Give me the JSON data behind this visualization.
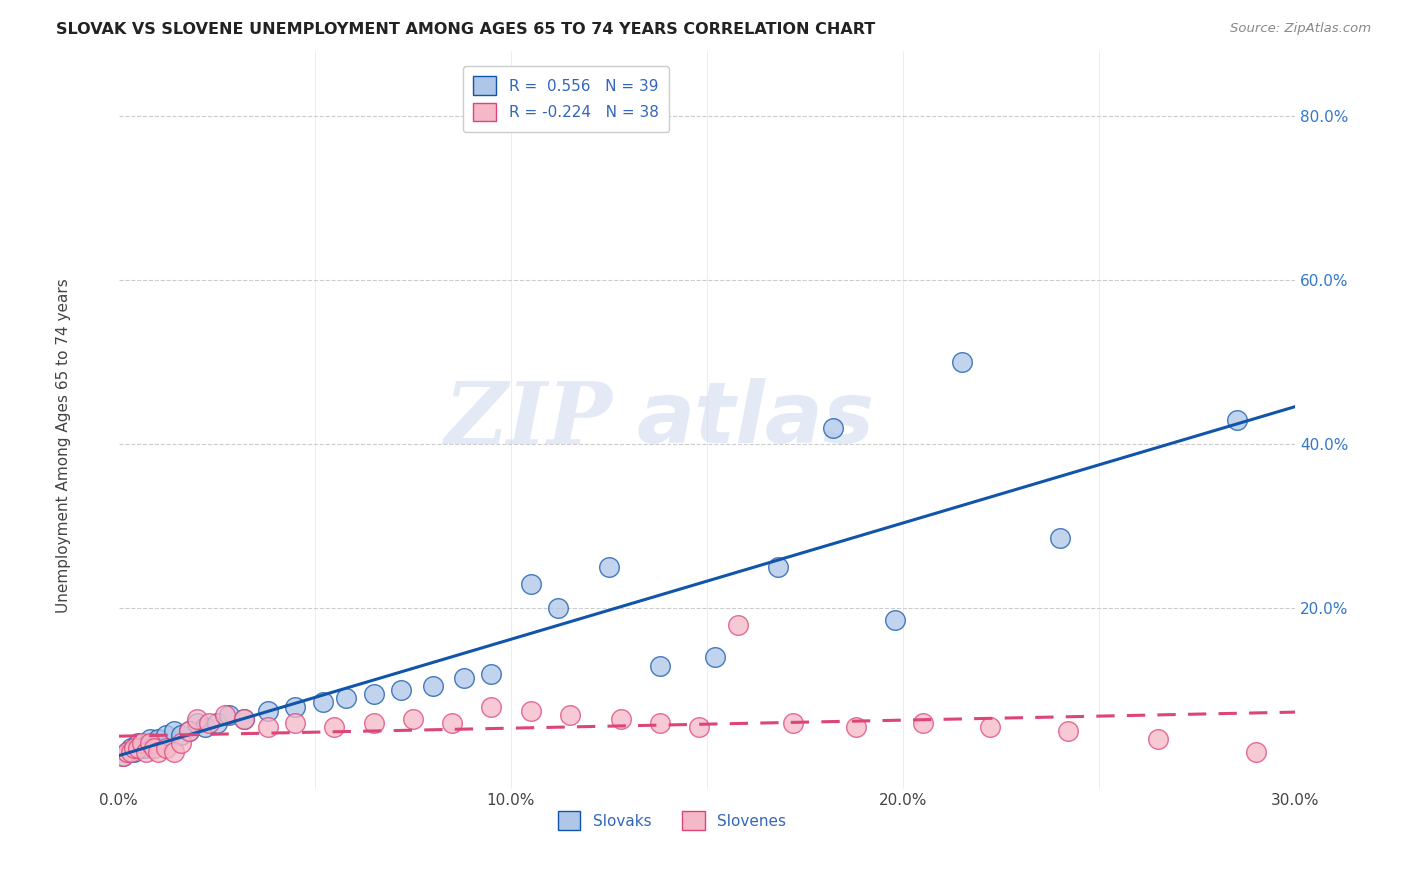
{
  "title": "SLOVAK VS SLOVENE UNEMPLOYMENT AMONG AGES 65 TO 74 YEARS CORRELATION CHART",
  "source": "Source: ZipAtlas.com",
  "ylabel": "Unemployment Among Ages 65 to 74 years",
  "xlim": [
    0.0,
    0.3
  ],
  "ylim": [
    -0.02,
    0.88
  ],
  "ytick_vals": [
    0.0,
    0.2,
    0.4,
    0.6,
    0.8
  ],
  "ytick_labels": [
    "",
    "20.0%",
    "40.0%",
    "60.0%",
    "80.0%"
  ],
  "xtick_vals": [
    0.0,
    0.05,
    0.1,
    0.15,
    0.2,
    0.25,
    0.3
  ],
  "xtick_labels": [
    "0.0%",
    "",
    "10.0%",
    "",
    "20.0%",
    "",
    "30.0%"
  ],
  "r_slovak": 0.556,
  "n_slovak": 39,
  "r_slovene": -0.224,
  "n_slovene": 38,
  "slovak_color": "#aec6e8",
  "slovene_color": "#f4b8c8",
  "trend_slovak_color": "#1155aa",
  "trend_slovene_color": "#dd4477",
  "watermark_zip": "ZIP",
  "watermark_atlas": "atlas",
  "slovak_x": [
    0.001,
    0.002,
    0.003,
    0.004,
    0.005,
    0.006,
    0.007,
    0.008,
    0.009,
    0.01,
    0.012,
    0.014,
    0.016,
    0.018,
    0.02,
    0.022,
    0.025,
    0.028,
    0.032,
    0.038,
    0.045,
    0.052,
    0.058,
    0.065,
    0.072,
    0.08,
    0.088,
    0.095,
    0.105,
    0.112,
    0.125,
    0.138,
    0.152,
    0.168,
    0.182,
    0.198,
    0.215,
    0.24,
    0.285
  ],
  "slovak_y": [
    0.02,
    0.025,
    0.03,
    0.025,
    0.035,
    0.03,
    0.03,
    0.04,
    0.035,
    0.04,
    0.045,
    0.05,
    0.045,
    0.05,
    0.06,
    0.055,
    0.06,
    0.07,
    0.065,
    0.075,
    0.08,
    0.085,
    0.09,
    0.095,
    0.1,
    0.105,
    0.115,
    0.12,
    0.23,
    0.2,
    0.25,
    0.13,
    0.14,
    0.25,
    0.42,
    0.185,
    0.5,
    0.285,
    0.43
  ],
  "slovene_x": [
    0.001,
    0.002,
    0.003,
    0.004,
    0.005,
    0.006,
    0.007,
    0.008,
    0.009,
    0.01,
    0.012,
    0.014,
    0.016,
    0.018,
    0.02,
    0.023,
    0.027,
    0.032,
    0.038,
    0.045,
    0.055,
    0.065,
    0.075,
    0.085,
    0.095,
    0.105,
    0.115,
    0.128,
    0.138,
    0.148,
    0.158,
    0.172,
    0.188,
    0.205,
    0.222,
    0.242,
    0.265,
    0.29
  ],
  "slovene_y": [
    0.02,
    0.025,
    0.025,
    0.03,
    0.03,
    0.035,
    0.025,
    0.035,
    0.03,
    0.025,
    0.03,
    0.025,
    0.035,
    0.05,
    0.065,
    0.06,
    0.07,
    0.065,
    0.055,
    0.06,
    0.055,
    0.06,
    0.065,
    0.06,
    0.08,
    0.075,
    0.07,
    0.065,
    0.06,
    0.055,
    0.18,
    0.06,
    0.055,
    0.06,
    0.055,
    0.05,
    0.04,
    0.025
  ]
}
